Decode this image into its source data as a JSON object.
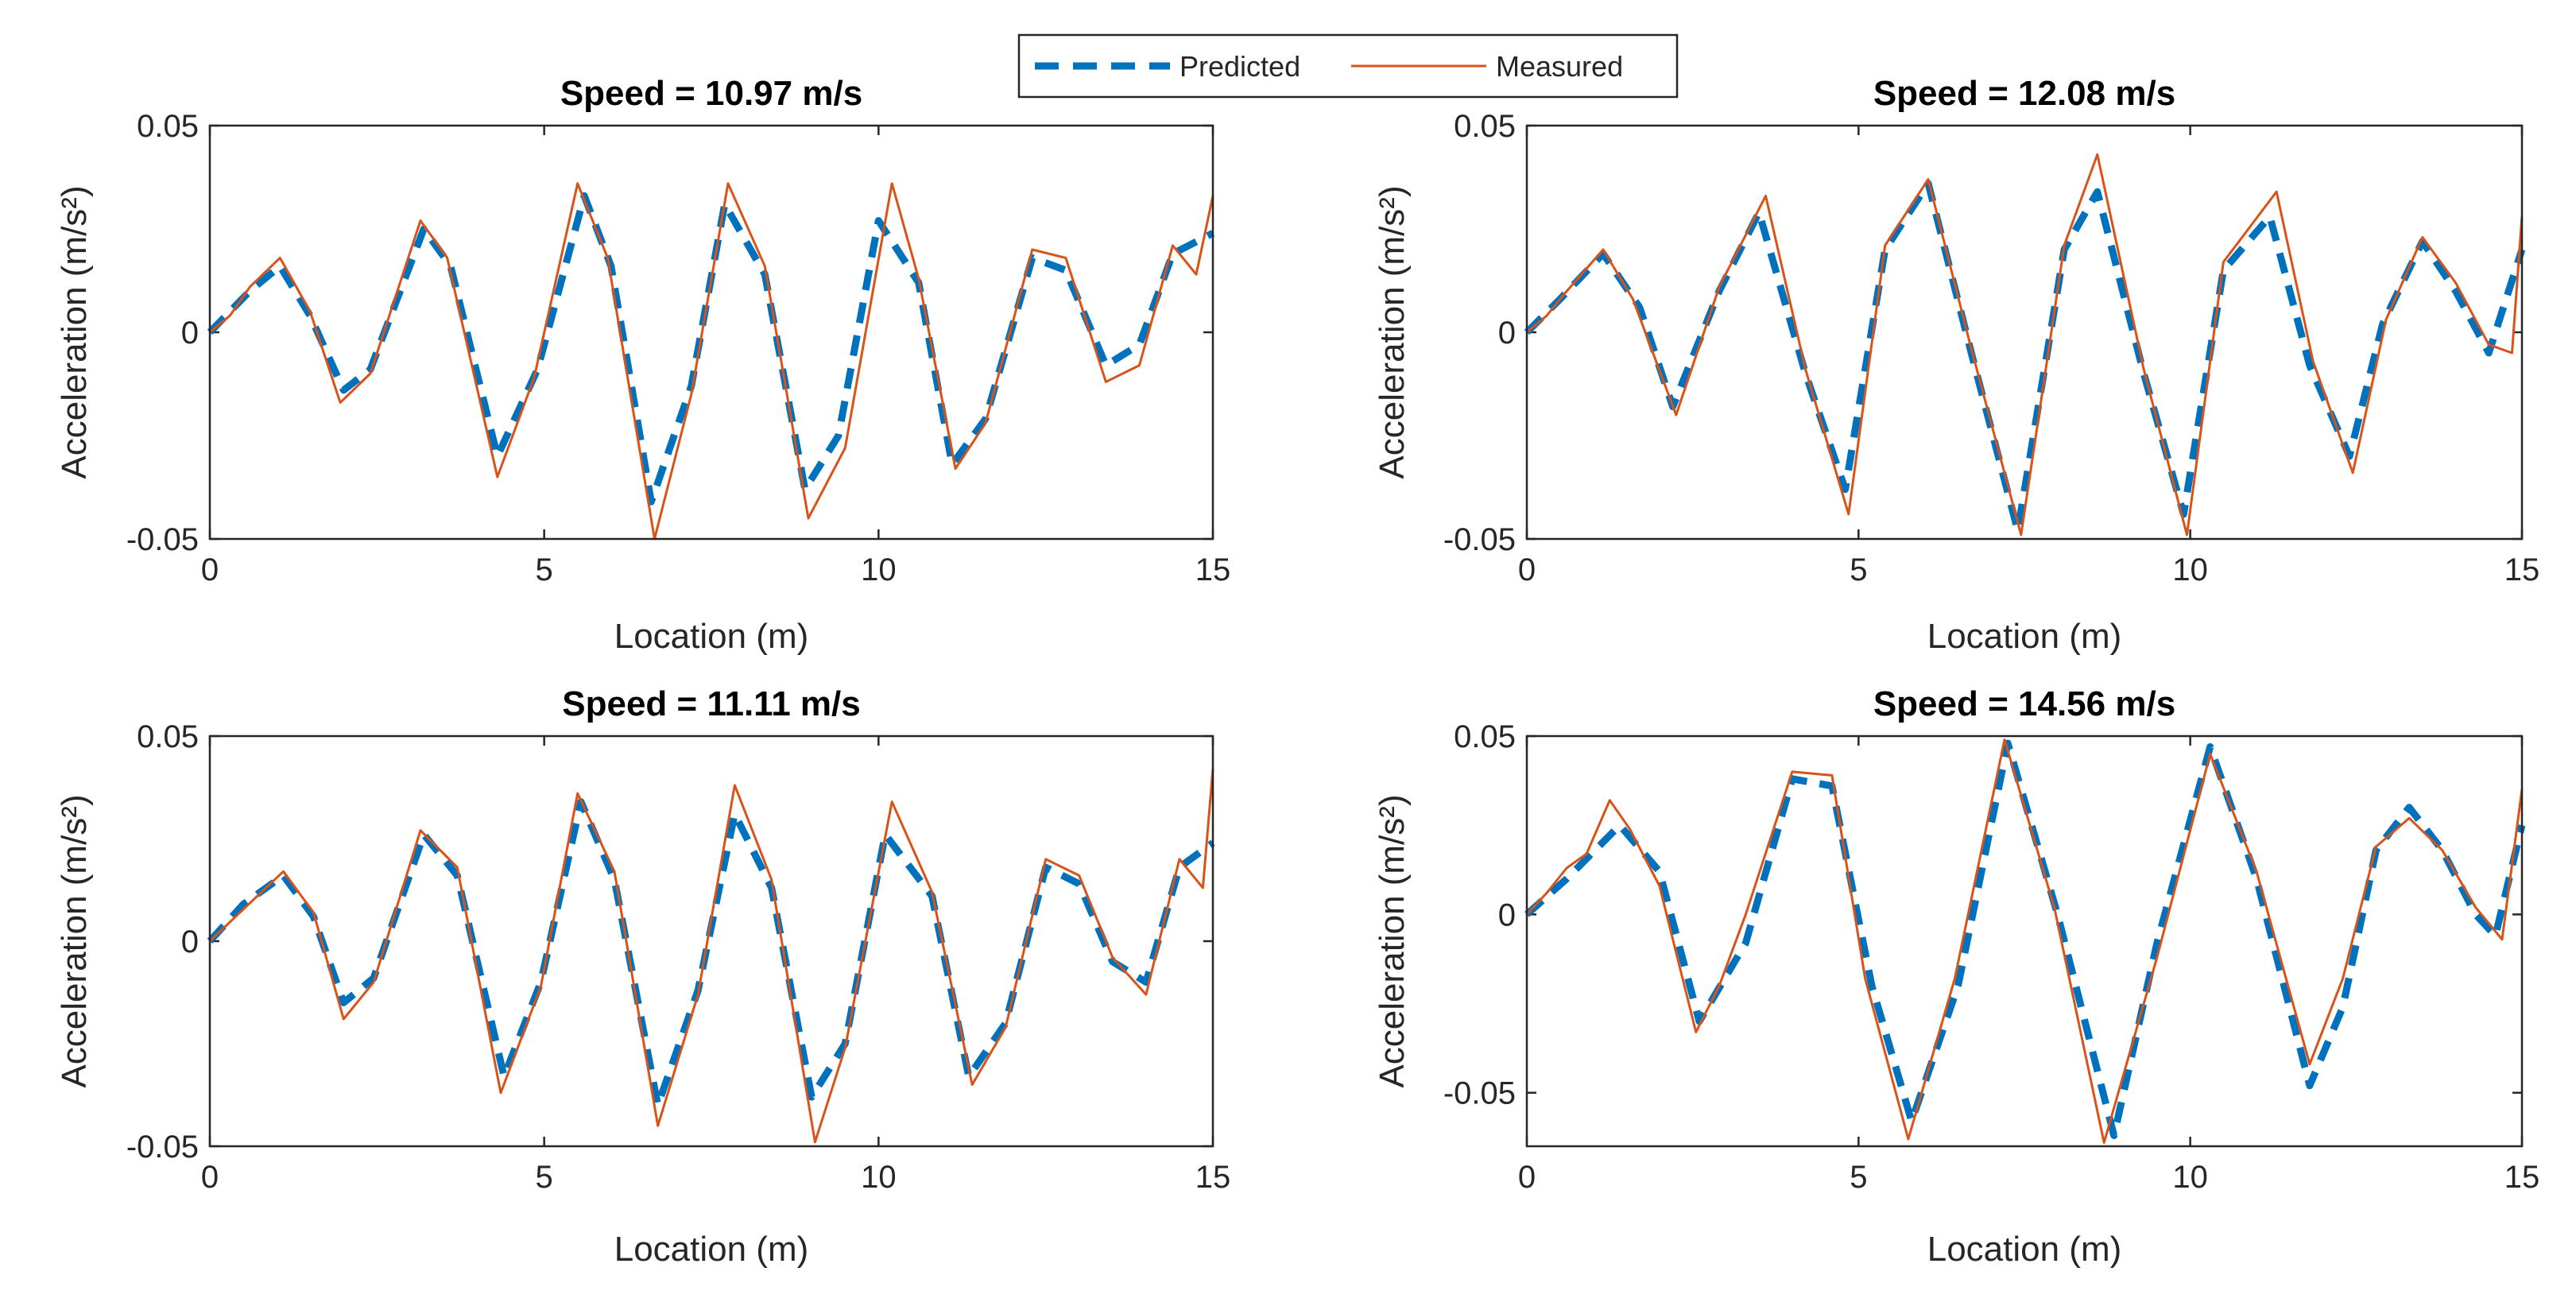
{
  "legend": {
    "entries": [
      {
        "label": "Predicted",
        "color": "#0072BD",
        "style": "dashed"
      },
      {
        "label": "Measured",
        "color": "#D95319",
        "style": "solid"
      }
    ]
  },
  "chart_data": [
    {
      "type": "line",
      "title": "Speed = 10.97 m/s",
      "xlabel": "Location (m)",
      "ylabel": "Acceleration (m/s²)",
      "xlim": [
        0,
        15
      ],
      "ylim": [
        -0.05,
        0.05
      ],
      "xticks": [
        0,
        5,
        10,
        15
      ],
      "xtick_labels": [
        "0",
        "5",
        "10",
        "15"
      ],
      "yticks": [
        -0.05,
        0,
        0.05
      ],
      "ytick_labels": [
        "-0.05",
        "0",
        "0.05"
      ],
      "grid": false,
      "series": [
        {
          "name": "Predicted",
          "x": [
            0,
            0.3,
            0.6,
            1.05,
            1.5,
            2.0,
            2.4,
            3.2,
            3.6,
            4.3,
            4.9,
            5.6,
            6.0,
            6.6,
            7.2,
            7.7,
            8.3,
            8.9,
            9.4,
            10.0,
            10.6,
            11.1,
            11.6,
            12.3,
            12.8,
            13.4,
            13.9,
            14.4,
            15.0
          ],
          "y": [
            0,
            0.005,
            0.01,
            0.016,
            0.004,
            -0.014,
            -0.009,
            0.025,
            0.016,
            -0.03,
            -0.009,
            0.033,
            0.016,
            -0.041,
            -0.013,
            0.031,
            0.014,
            -0.038,
            -0.025,
            0.027,
            0.012,
            -0.032,
            -0.021,
            0.018,
            0.015,
            -0.008,
            -0.003,
            0.019,
            0.024
          ]
        },
        {
          "name": "Measured",
          "x": [
            0,
            0.3,
            0.6,
            1.05,
            1.5,
            1.95,
            2.4,
            3.15,
            3.55,
            4.3,
            4.85,
            5.5,
            5.95,
            6.65,
            7.2,
            7.75,
            8.3,
            8.95,
            9.5,
            10.2,
            10.6,
            11.15,
            11.6,
            12.3,
            12.8,
            13.4,
            13.9,
            14.4,
            14.75,
            15.0
          ],
          "y": [
            0,
            0.004,
            0.011,
            0.018,
            0.005,
            -0.017,
            -0.01,
            0.027,
            0.018,
            -0.035,
            -0.011,
            0.036,
            0.018,
            -0.05,
            -0.015,
            0.036,
            0.016,
            -0.045,
            -0.028,
            0.036,
            0.013,
            -0.033,
            -0.022,
            0.02,
            0.018,
            -0.012,
            -0.008,
            0.021,
            0.014,
            0.033
          ]
        }
      ]
    },
    {
      "type": "line",
      "title": "Speed = 12.08 m/s",
      "xlabel": "Location (m)",
      "ylabel": "Acceleration (m/s²)",
      "xlim": [
        0,
        15
      ],
      "ylim": [
        -0.05,
        0.05
      ],
      "xticks": [
        0,
        5,
        10,
        15
      ],
      "xtick_labels": [
        "0",
        "5",
        "10",
        "15"
      ],
      "yticks": [
        -0.05,
        0,
        0.05
      ],
      "ytick_labels": [
        "-0.05",
        "0",
        "0.05"
      ],
      "grid": false,
      "series": [
        {
          "name": "Predicted",
          "x": [
            0,
            0.5,
            1.15,
            1.7,
            2.2,
            2.9,
            3.5,
            4.2,
            4.8,
            5.4,
            6.05,
            6.7,
            7.4,
            8.1,
            8.6,
            9.3,
            9.9,
            10.5,
            11.2,
            11.8,
            12.4,
            12.9,
            13.5,
            14.0,
            14.5,
            15.0
          ],
          "y": [
            0,
            0.008,
            0.019,
            0.006,
            -0.018,
            0.01,
            0.029,
            -0.01,
            -0.038,
            0.02,
            0.036,
            -0.005,
            -0.048,
            0.02,
            0.034,
            -0.01,
            -0.044,
            0.015,
            0.028,
            -0.008,
            -0.03,
            0.002,
            0.022,
            0.01,
            -0.005,
            0.02
          ]
        },
        {
          "name": "Measured",
          "x": [
            0,
            0.3,
            0.55,
            1.15,
            1.6,
            2.25,
            2.9,
            3.6,
            4.2,
            4.85,
            5.4,
            6.05,
            6.7,
            7.45,
            8.1,
            8.6,
            9.3,
            9.95,
            10.5,
            11.3,
            11.85,
            12.45,
            12.95,
            13.5,
            14.0,
            14.5,
            14.85,
            15.0
          ],
          "y": [
            0,
            0.004,
            0.009,
            0.02,
            0.008,
            -0.02,
            0.011,
            0.033,
            -0.009,
            -0.044,
            0.021,
            0.037,
            -0.004,
            -0.049,
            0.021,
            0.043,
            -0.009,
            -0.049,
            0.017,
            0.034,
            -0.007,
            -0.034,
            0.003,
            0.023,
            0.012,
            -0.003,
            -0.005,
            0.028
          ]
        }
      ]
    },
    {
      "type": "line",
      "title": "Speed = 11.11 m/s",
      "xlabel": "Location (m)",
      "ylabel": "Acceleration (m/s²)",
      "xlim": [
        0,
        15
      ],
      "ylim": [
        -0.05,
        0.05
      ],
      "xticks": [
        0,
        5,
        10,
        15
      ],
      "xtick_labels": [
        "0",
        "5",
        "10",
        "15"
      ],
      "yticks": [
        -0.05,
        0,
        0.05
      ],
      "ytick_labels": [
        "-0.05",
        "0",
        "0.05"
      ],
      "grid": false,
      "series": [
        {
          "name": "Predicted",
          "x": [
            0,
            0.5,
            1.1,
            1.55,
            2.0,
            2.45,
            3.2,
            3.7,
            4.4,
            4.95,
            5.55,
            6.05,
            6.7,
            7.3,
            7.85,
            8.4,
            9.0,
            9.5,
            10.1,
            10.8,
            11.35,
            11.9,
            12.5,
            13.0,
            13.5,
            14.0,
            14.5,
            15.0
          ],
          "y": [
            0,
            0.009,
            0.016,
            0.006,
            -0.015,
            -0.009,
            0.026,
            0.016,
            -0.033,
            -0.01,
            0.034,
            0.015,
            -0.04,
            -0.012,
            0.031,
            0.013,
            -0.038,
            -0.025,
            0.026,
            0.011,
            -0.033,
            -0.02,
            0.018,
            0.014,
            -0.005,
            -0.01,
            0.018,
            0.024
          ]
        },
        {
          "name": "Measured",
          "x": [
            0,
            0.45,
            1.1,
            1.55,
            2.0,
            2.45,
            3.15,
            3.7,
            4.35,
            4.95,
            5.5,
            6.05,
            6.7,
            7.3,
            7.85,
            8.4,
            9.05,
            9.5,
            10.2,
            10.8,
            11.4,
            11.9,
            12.5,
            13.0,
            13.5,
            14.0,
            14.5,
            14.85,
            15.0
          ],
          "y": [
            0,
            0.007,
            0.017,
            0.007,
            -0.019,
            -0.01,
            0.027,
            0.018,
            -0.037,
            -0.011,
            0.036,
            0.017,
            -0.045,
            -0.013,
            0.038,
            0.015,
            -0.049,
            -0.026,
            0.034,
            0.012,
            -0.035,
            -0.021,
            0.02,
            0.016,
            -0.004,
            -0.013,
            0.02,
            0.013,
            0.042
          ]
        }
      ]
    },
    {
      "type": "line",
      "title": "Speed = 14.56 m/s",
      "xlabel": "Location (m)",
      "ylabel": "Acceleration (m/s²)",
      "xlim": [
        0,
        15
      ],
      "ylim": [
        -0.065,
        0.05
      ],
      "xticks": [
        0,
        5,
        10,
        15
      ],
      "xtick_labels": [
        "0",
        "5",
        "10",
        "15"
      ],
      "yticks": [
        -0.05,
        0,
        0.05
      ],
      "ytick_labels": [
        "-0.05",
        "0",
        "0.05"
      ],
      "grid": false,
      "series": [
        {
          "name": "Predicted",
          "x": [
            0,
            0.6,
            1.4,
            2.0,
            2.6,
            3.3,
            4.0,
            4.6,
            5.2,
            5.8,
            6.5,
            7.25,
            8.0,
            8.85,
            9.5,
            10.3,
            11.0,
            11.8,
            12.3,
            12.8,
            13.3,
            13.8,
            14.3,
            14.6,
            15.0
          ],
          "y": [
            0,
            0.01,
            0.025,
            0.012,
            -0.03,
            -0.008,
            0.038,
            0.036,
            -0.02,
            -0.058,
            -0.02,
            0.048,
            0.0,
            -0.062,
            -0.008,
            0.047,
            0.01,
            -0.048,
            -0.026,
            0.018,
            0.03,
            0.018,
            0.0,
            -0.006,
            0.025
          ]
        },
        {
          "name": "Measured",
          "x": [
            0,
            0.3,
            0.6,
            0.9,
            1.25,
            1.55,
            2.0,
            2.55,
            2.9,
            3.3,
            4.0,
            4.6,
            5.1,
            5.75,
            6.45,
            7.2,
            7.95,
            8.7,
            9.5,
            10.3,
            11.0,
            11.8,
            12.3,
            12.8,
            13.3,
            13.8,
            14.3,
            14.7,
            15.0
          ],
          "y": [
            0,
            0.006,
            0.013,
            0.017,
            0.032,
            0.024,
            0.008,
            -0.033,
            -0.02,
            0.0,
            0.04,
            0.039,
            -0.018,
            -0.063,
            -0.018,
            0.049,
            0.002,
            -0.064,
            -0.012,
            0.045,
            0.012,
            -0.042,
            -0.018,
            0.019,
            0.027,
            0.018,
            0.002,
            -0.007,
            0.035
          ]
        }
      ]
    }
  ]
}
